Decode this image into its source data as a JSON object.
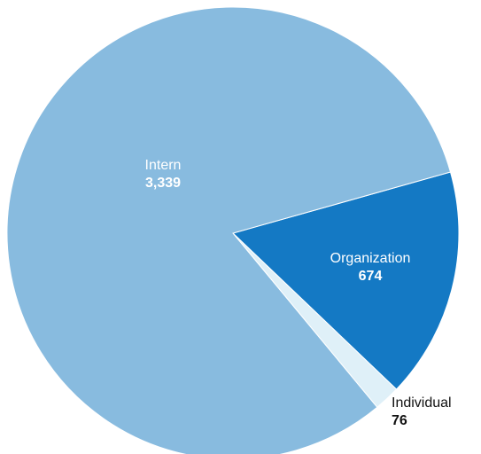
{
  "chart_data": {
    "type": "pie",
    "categories": [
      "Organization",
      "Individual",
      "Intern"
    ],
    "values": [
      674,
      76,
      3339
    ],
    "value_labels": [
      "674",
      "76",
      "3,339"
    ],
    "colors": [
      "#1479c4",
      "#dff0f8",
      "#88bbdf"
    ],
    "label_colors": [
      "#ffffff",
      "#111111",
      "#ffffff"
    ]
  }
}
